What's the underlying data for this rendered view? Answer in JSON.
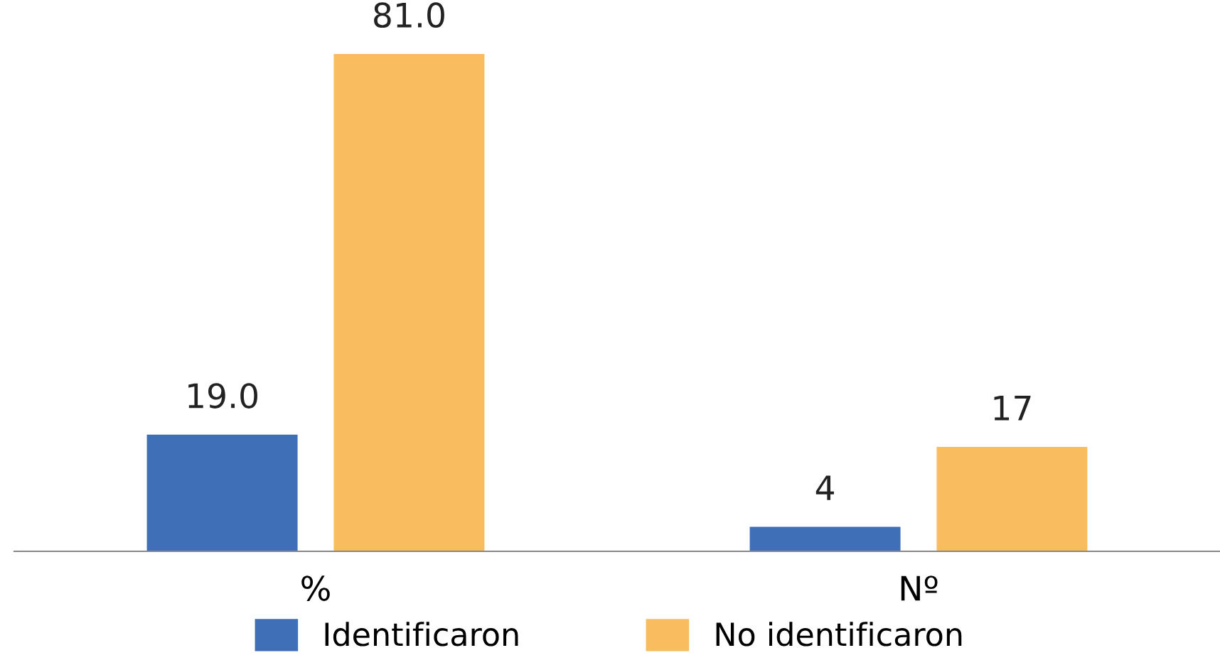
{
  "chart_data": {
    "type": "bar",
    "categories": [
      "%",
      "Nº"
    ],
    "series": [
      {
        "name": "Identificaron",
        "color": "#3e6fb7",
        "values": [
          19.0,
          4
        ],
        "value_labels": [
          "19.0",
          "4"
        ]
      },
      {
        "name": "No identificaron",
        "color": "#f9bd5f",
        "values": [
          81.0,
          17
        ],
        "value_labels": [
          "81.0",
          "17"
        ]
      }
    ],
    "legend": "bottom",
    "grid": false,
    "tick_labels": "x"
  }
}
